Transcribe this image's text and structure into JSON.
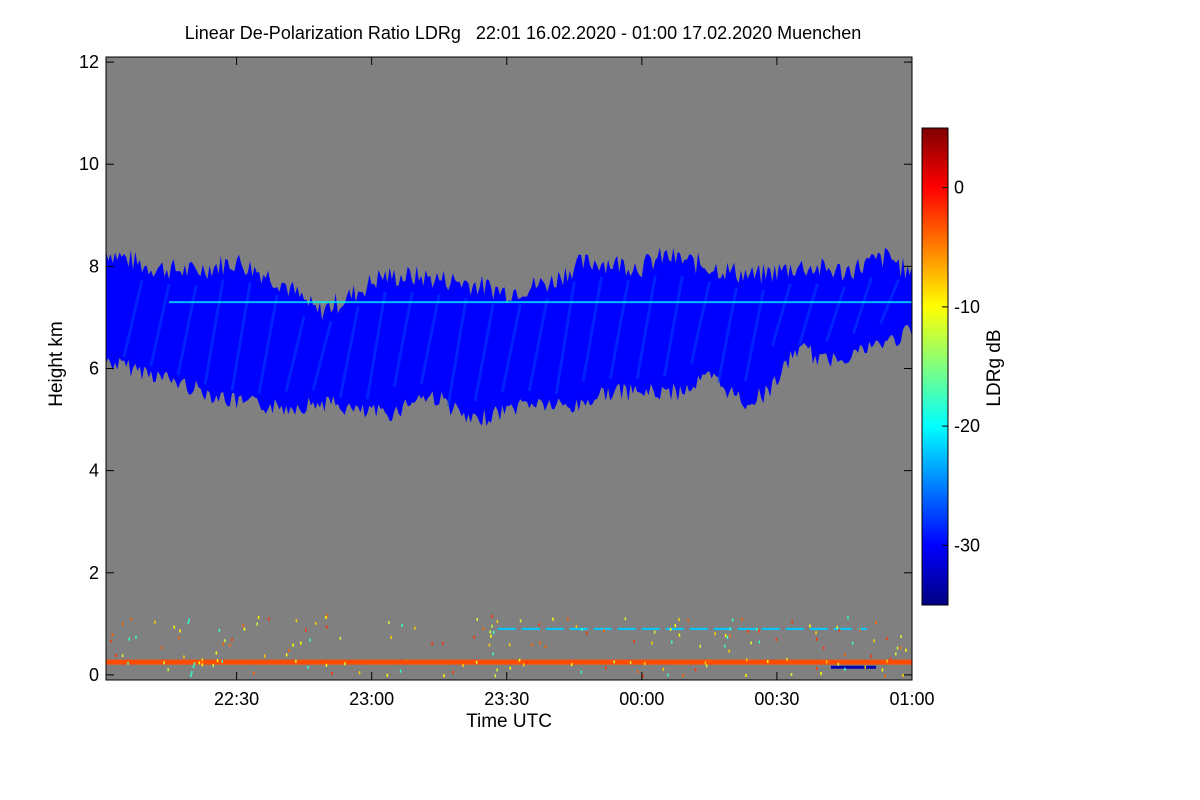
{
  "chart_data": {
    "type": "heatmap",
    "title": "Linear De-Polarization Ratio LDRg   22:01 16.02.2020 - 01:00 17.02.2020 Muenchen",
    "xlabel": "Time UTC",
    "ylabel": "Height km",
    "colorbar_label": "LDRg dB",
    "x_unit": "minutes after 22:00 UTC",
    "xlim": [
      1,
      180
    ],
    "ylim": [
      -0.1,
      12.1
    ],
    "clim": [
      -35,
      5
    ],
    "x_ticks": [
      {
        "value": 30,
        "label": "22:30"
      },
      {
        "value": 60,
        "label": "23:00"
      },
      {
        "value": 90,
        "label": "23:30"
      },
      {
        "value": 120,
        "label": "00:00"
      },
      {
        "value": 150,
        "label": "00:30"
      },
      {
        "value": 180,
        "label": "01:00"
      }
    ],
    "y_ticks": [
      {
        "value": 0,
        "label": "0"
      },
      {
        "value": 2,
        "label": "2"
      },
      {
        "value": 4,
        "label": "4"
      },
      {
        "value": 6,
        "label": "6"
      },
      {
        "value": 8,
        "label": "8"
      },
      {
        "value": 10,
        "label": "10"
      },
      {
        "value": 12,
        "label": "12"
      }
    ],
    "colorbar_ticks": [
      {
        "value": 0,
        "label": "0"
      },
      {
        "value": -10,
        "label": "-10"
      },
      {
        "value": -20,
        "label": "-20"
      },
      {
        "value": -30,
        "label": "-30"
      }
    ],
    "background_color": "#808080",
    "colormap": [
      "#00007f",
      "#0000ff",
      "#007fff",
      "#00ffff",
      "#7fff7f",
      "#ffff00",
      "#ff7f00",
      "#ff0000",
      "#7f0000"
    ],
    "cirrus_layer": {
      "description_ldr_db": -30,
      "top_km": [
        [
          1,
          8.3
        ],
        [
          10,
          8.0
        ],
        [
          20,
          7.9
        ],
        [
          30,
          8.1
        ],
        [
          40,
          7.7
        ],
        [
          48,
          7.1
        ],
        [
          55,
          7.4
        ],
        [
          62,
          7.8
        ],
        [
          70,
          7.8
        ],
        [
          80,
          7.7
        ],
        [
          90,
          7.5
        ],
        [
          100,
          7.7
        ],
        [
          105,
          8.0
        ],
        [
          110,
          8.1
        ],
        [
          120,
          8.0
        ],
        [
          125,
          8.2
        ],
        [
          135,
          8.0
        ],
        [
          145,
          7.8
        ],
        [
          155,
          8.0
        ],
        [
          165,
          7.9
        ],
        [
          175,
          8.2
        ],
        [
          180,
          7.8
        ]
      ],
      "base_km": [
        [
          1,
          6.2
        ],
        [
          10,
          6.0
        ],
        [
          20,
          5.7
        ],
        [
          30,
          5.4
        ],
        [
          40,
          5.3
        ],
        [
          50,
          5.4
        ],
        [
          58,
          5.2
        ],
        [
          65,
          5.2
        ],
        [
          70,
          5.5
        ],
        [
          75,
          5.5
        ],
        [
          82,
          5.0
        ],
        [
          88,
          5.2
        ],
        [
          95,
          5.4
        ],
        [
          105,
          5.3
        ],
        [
          112,
          5.6
        ],
        [
          120,
          5.6
        ],
        [
          128,
          5.6
        ],
        [
          135,
          5.9
        ],
        [
          143,
          5.4
        ],
        [
          148,
          5.6
        ],
        [
          155,
          6.5
        ],
        [
          160,
          6.2
        ],
        [
          168,
          6.4
        ],
        [
          175,
          6.6
        ],
        [
          180,
          6.8
        ]
      ]
    },
    "bright_band": {
      "height_km": 7.3,
      "ldr_db": -20
    },
    "boundary_layer_band": {
      "height_km": 0.25,
      "ldr_db": -3
    },
    "low_layer_band": {
      "height_km": 0.9,
      "x_range": [
        88,
        170
      ],
      "ldr_db": -22
    },
    "surface_band": {
      "height_km": 0.15,
      "x_range": [
        162,
        172
      ],
      "ldr_db": -33
    }
  }
}
